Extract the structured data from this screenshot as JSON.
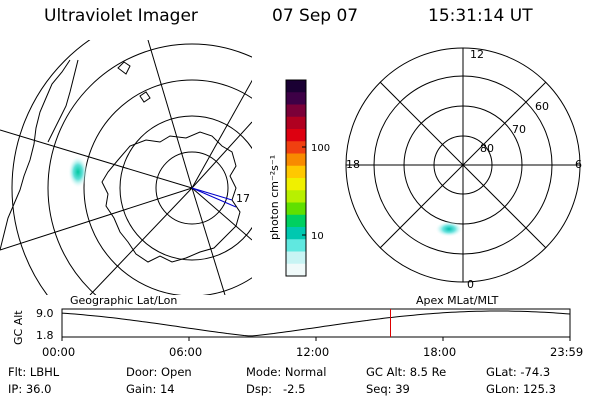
{
  "header": {
    "title": "Ultraviolet Imager",
    "date": "07 Sep 07",
    "time": "15:31:14 UT"
  },
  "left_map": {
    "label": "Geographic Lat/Lon",
    "meridian_label": "17"
  },
  "right_map": {
    "label": "Apex MLat/MLT",
    "mlt_labels": {
      "top": "12",
      "bottom": "0",
      "left": "18",
      "right": "6"
    },
    "lat_labels": [
      "80",
      "70",
      "60"
    ]
  },
  "colorbar": {
    "unit_label": "photon cm⁻²s⁻¹",
    "ticks": [
      "100",
      "10"
    ],
    "colors": [
      "#1a0033",
      "#3d0046",
      "#7a0038",
      "#b00020",
      "#dd0010",
      "#f04010",
      "#f88a00",
      "#ffc800",
      "#f0f000",
      "#b8f000",
      "#60e000",
      "#00d060",
      "#00c8b0",
      "#60e8e0",
      "#c8f4f4",
      "#f0fafa"
    ]
  },
  "timeline": {
    "ylabel": "GC Alt",
    "y_ticks": [
      "9.0",
      "1.8"
    ],
    "x_ticks": [
      "00:00",
      "06:00",
      "12:00",
      "18:00",
      "23:59"
    ],
    "marker_hour": 15.52
  },
  "info": {
    "rows": [
      [
        "Flt: LBHL",
        "Door: Open",
        "Mode: Normal",
        "GC Alt: 8.5 Re",
        "GLat: -74.3"
      ],
      [
        "IP: 36.0",
        "Gain: 14",
        "Dsp:   -2.5",
        "Seq: 39",
        "GLon: 125.3"
      ]
    ]
  }
}
